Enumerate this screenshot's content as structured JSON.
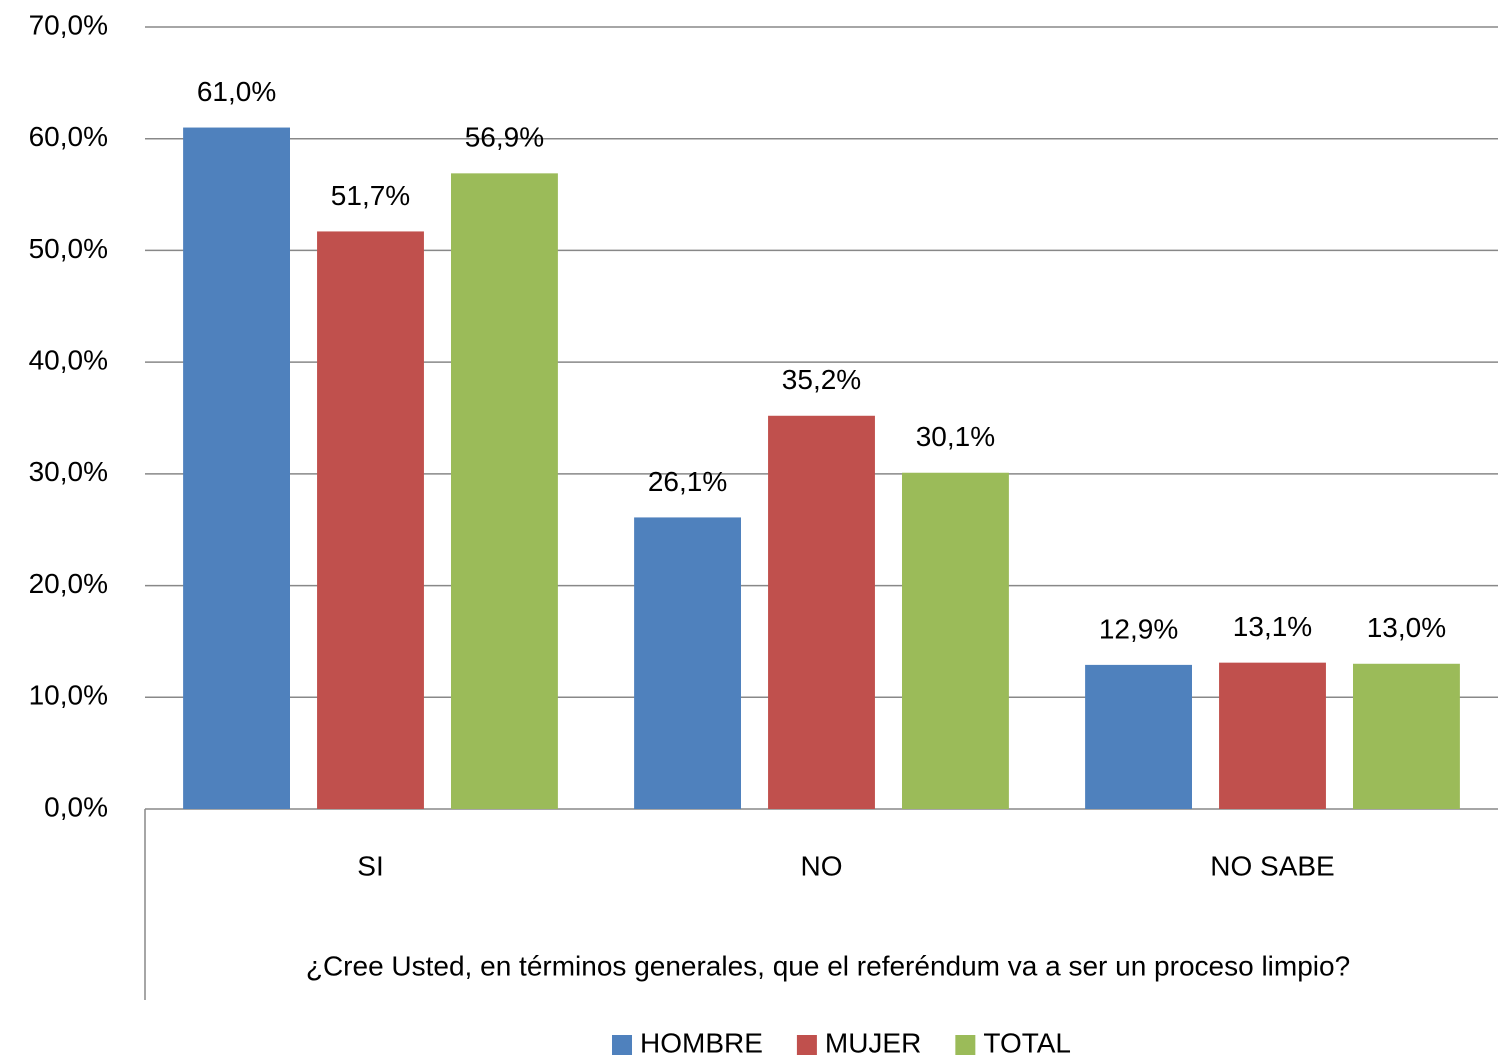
{
  "chart_data": {
    "type": "bar",
    "xlabel": "¿Cree Usted, en términos generales, que el referéndum va a ser un proceso limpio?",
    "categories": [
      "SI",
      "NO",
      "NO SABE"
    ],
    "series": [
      {
        "name": "HOMBRE",
        "color": "#4f81bd",
        "values": [
          61.0,
          26.1,
          12.9
        ],
        "value_labels": [
          "61,0%",
          "26,1%",
          "12,9%"
        ]
      },
      {
        "name": "MUJER",
        "color": "#c0504d",
        "values": [
          51.7,
          35.2,
          13.1
        ],
        "value_labels": [
          "51,7%",
          "35,2%",
          "13,1%"
        ]
      },
      {
        "name": "TOTAL",
        "color": "#9bbb59",
        "values": [
          56.9,
          30.1,
          13.0
        ],
        "value_labels": [
          "56,9%",
          "30,1%",
          "13,0%"
        ]
      }
    ],
    "ylim": [
      0,
      70
    ],
    "yticks": [
      {
        "value": 0,
        "label": "0,0%"
      },
      {
        "value": 10,
        "label": "10,0%"
      },
      {
        "value": 20,
        "label": "20,0%"
      },
      {
        "value": 30,
        "label": "30,0%"
      },
      {
        "value": 40,
        "label": "40,0%"
      },
      {
        "value": 50,
        "label": "50,0%"
      },
      {
        "value": 60,
        "label": "60,0%"
      },
      {
        "value": 70,
        "label": "70,0%"
      }
    ],
    "grid": true,
    "legend": "bottom"
  }
}
